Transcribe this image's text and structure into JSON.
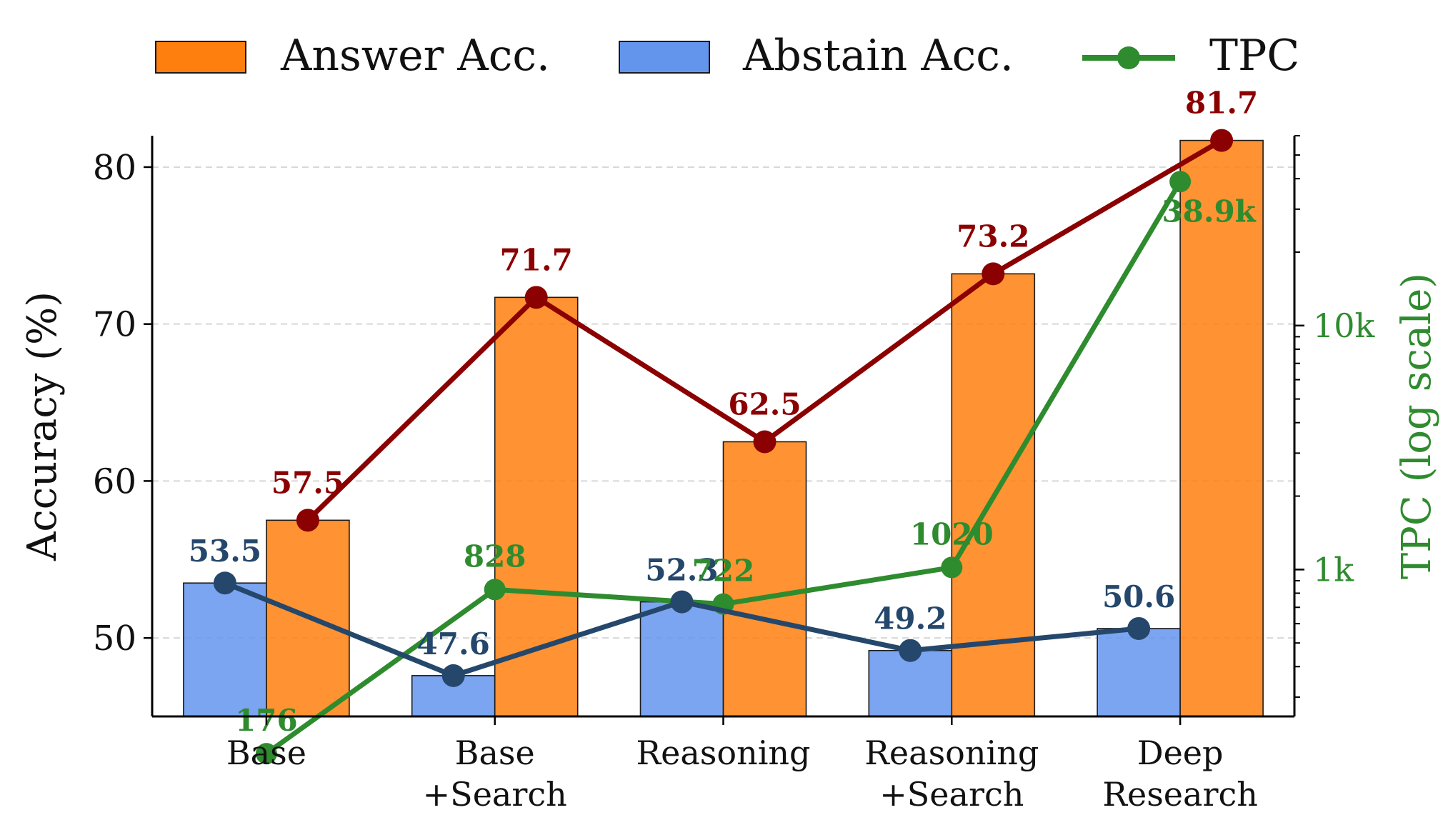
{
  "chart_data": {
    "type": "bar",
    "categories": [
      [
        "Base"
      ],
      [
        "Base",
        "+Search"
      ],
      [
        "Reasoning"
      ],
      [
        "Reasoning",
        "+Search"
      ],
      [
        "Deep",
        "Research"
      ]
    ],
    "ylabel": "Accuracy (%)",
    "y2label": "TPC (log scale)",
    "ylim": [
      45,
      82
    ],
    "yticks": [
      50,
      60,
      70,
      80
    ],
    "y2scale": "log",
    "y2lim": [
      250,
      60000
    ],
    "y2ticks": [
      {
        "value": 1000,
        "label": "1k"
      },
      {
        "value": 10000,
        "label": "10k"
      }
    ],
    "grid": "horizontal dashed",
    "legend_position": "top",
    "series": [
      {
        "name": "Answer Acc.",
        "kind": "bar",
        "color": "#ff7f0e",
        "line_color": "#8b0000",
        "values": [
          57.5,
          71.7,
          62.5,
          73.2,
          81.7
        ],
        "labels": [
          "57.5",
          "71.7",
          "62.5",
          "73.2",
          "81.7"
        ]
      },
      {
        "name": "Abstain Acc.",
        "kind": "bar",
        "color": "#6495ed",
        "line_color": "#24476b",
        "values": [
          53.5,
          47.6,
          52.3,
          49.2,
          50.6
        ],
        "labels": [
          "53.5",
          "47.6",
          "52.3",
          "49.2",
          "50.6"
        ]
      },
      {
        "name": "TPC",
        "kind": "line",
        "axis": "right",
        "color": "#2e8b2e",
        "values": [
          176,
          828,
          722,
          1020,
          38900
        ],
        "labels": [
          "176",
          "828",
          "722",
          "1020",
          "38.9k"
        ]
      }
    ]
  }
}
